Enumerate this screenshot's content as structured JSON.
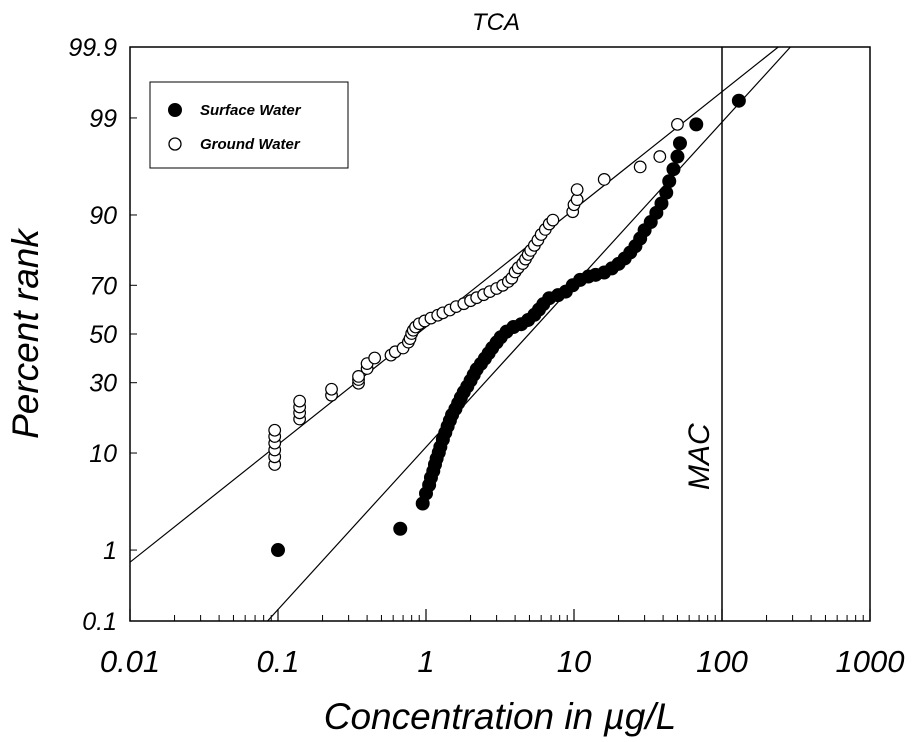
{
  "chart_data": {
    "type": "scatter",
    "title": "TCA",
    "xlabel": "Concentration in µg/L",
    "ylabel": "Percent rank",
    "x_scale": "log",
    "y_scale": "probability",
    "xlim": [
      0.01,
      1000
    ],
    "ylim": [
      0.1,
      99.9
    ],
    "x_ticks": [
      "0.01",
      "0.1",
      "1",
      "10",
      "100",
      "1000"
    ],
    "y_ticks": [
      "0.1",
      "1",
      "10",
      "30",
      "50",
      "70",
      "90",
      "99",
      "99.9"
    ],
    "legend": {
      "position": "top-left"
    },
    "grid": false,
    "reference_line": {
      "label": "MAC",
      "x": 100
    },
    "series": [
      {
        "name": "Surface Water",
        "marker": "filled-circle",
        "points": [
          [
            0.1,
            1.0
          ],
          [
            0.67,
            1.8
          ],
          [
            0.95,
            3.4
          ],
          [
            1.0,
            4.3
          ],
          [
            1.05,
            5.2
          ],
          [
            1.08,
            6.1
          ],
          [
            1.12,
            7.0
          ],
          [
            1.15,
            8.0
          ],
          [
            1.18,
            9.0
          ],
          [
            1.22,
            10.1
          ],
          [
            1.25,
            11.2
          ],
          [
            1.3,
            12.8
          ],
          [
            1.35,
            14.4
          ],
          [
            1.4,
            16.0
          ],
          [
            1.45,
            17.6
          ],
          [
            1.5,
            19.2
          ],
          [
            1.58,
            21.0
          ],
          [
            1.65,
            22.8
          ],
          [
            1.72,
            24.7
          ],
          [
            1.8,
            26.6
          ],
          [
            1.9,
            28.6
          ],
          [
            2.0,
            30.8
          ],
          [
            2.1,
            33.0
          ],
          [
            2.2,
            35.2
          ],
          [
            2.35,
            37.4
          ],
          [
            2.5,
            39.6
          ],
          [
            2.65,
            41.8
          ],
          [
            2.8,
            44.0
          ],
          [
            3.0,
            46.4
          ],
          [
            3.2,
            48.6
          ],
          [
            3.5,
            51.0
          ],
          [
            3.9,
            53.0
          ],
          [
            4.4,
            54.2
          ],
          [
            4.9,
            56.0
          ],
          [
            5.4,
            58.2
          ],
          [
            5.8,
            60.4
          ],
          [
            6.2,
            62.6
          ],
          [
            6.8,
            65.0
          ],
          [
            7.8,
            66.2
          ],
          [
            8.8,
            67.6
          ],
          [
            9.8,
            70.0
          ],
          [
            11.0,
            72.0
          ],
          [
            12.5,
            73.2
          ],
          [
            14.0,
            73.8
          ],
          [
            16.0,
            74.6
          ],
          [
            18.0,
            76.0
          ],
          [
            20.0,
            77.5
          ],
          [
            22.0,
            79.2
          ],
          [
            24.0,
            81.0
          ],
          [
            26.0,
            82.8
          ],
          [
            28.0,
            84.8
          ],
          [
            30.0,
            86.8
          ],
          [
            33.0,
            88.6
          ],
          [
            36.0,
            90.4
          ],
          [
            39.0,
            92.0
          ],
          [
            42.0,
            93.6
          ],
          [
            44.0,
            95.0
          ],
          [
            47.0,
            96.2
          ],
          [
            50.0,
            97.2
          ],
          [
            52.0,
            98.0
          ],
          [
            67.0,
            98.8
          ],
          [
            130.0,
            99.4
          ]
        ]
      },
      {
        "name": "Ground Water",
        "marker": "open-circle",
        "points": [
          [
            0.095,
            8.0
          ],
          [
            0.095,
            9.3
          ],
          [
            0.095,
            10.6
          ],
          [
            0.095,
            12.0
          ],
          [
            0.095,
            13.5
          ],
          [
            0.095,
            15.0
          ],
          [
            0.14,
            18.0
          ],
          [
            0.14,
            19.8
          ],
          [
            0.14,
            21.6
          ],
          [
            0.14,
            23.5
          ],
          [
            0.23,
            25.5
          ],
          [
            0.23,
            27.6
          ],
          [
            0.35,
            29.8
          ],
          [
            0.35,
            31.2
          ],
          [
            0.35,
            32.4
          ],
          [
            0.4,
            35.5
          ],
          [
            0.4,
            37.5
          ],
          [
            0.45,
            39.8
          ],
          [
            0.58,
            41.0
          ],
          [
            0.62,
            42.4
          ],
          [
            0.7,
            44.0
          ],
          [
            0.76,
            46.5
          ],
          [
            0.78,
            48.0
          ],
          [
            0.8,
            50.2
          ],
          [
            0.82,
            51.6
          ],
          [
            0.85,
            53.0
          ],
          [
            0.9,
            54.4
          ],
          [
            0.98,
            55.6
          ],
          [
            1.08,
            56.8
          ],
          [
            1.2,
            58.0
          ],
          [
            1.3,
            59.0
          ],
          [
            1.45,
            60.2
          ],
          [
            1.6,
            61.6
          ],
          [
            1.8,
            62.8
          ],
          [
            2.0,
            64.0
          ],
          [
            2.2,
            65.2
          ],
          [
            2.45,
            66.4
          ],
          [
            2.7,
            67.6
          ],
          [
            3.0,
            68.8
          ],
          [
            3.3,
            70.0
          ],
          [
            3.6,
            71.4
          ],
          [
            3.8,
            72.6
          ],
          [
            4.0,
            74.8
          ],
          [
            4.2,
            76.2
          ],
          [
            4.5,
            77.6
          ],
          [
            4.7,
            79.0
          ],
          [
            4.9,
            80.4
          ],
          [
            5.1,
            81.6
          ],
          [
            5.4,
            83.0
          ],
          [
            5.7,
            84.4
          ],
          [
            6.0,
            85.8
          ],
          [
            6.4,
            87.0
          ],
          [
            6.8,
            88.2
          ],
          [
            7.2,
            89.0
          ],
          [
            9.8,
            90.6
          ],
          [
            10.0,
            91.8
          ],
          [
            10.5,
            92.6
          ],
          [
            10.5,
            94.0
          ],
          [
            16.0,
            95.2
          ],
          [
            28.0,
            96.4
          ],
          [
            38.0,
            97.2
          ],
          [
            50.0,
            98.8
          ]
        ]
      }
    ],
    "fit_lines": [
      {
        "series": "Ground Water",
        "from": [
          0.01,
          0.7
        ],
        "to": [
          240.0,
          99.9
        ]
      },
      {
        "series": "Surface Water",
        "from": [
          0.085,
          0.1
        ],
        "to": [
          290.0,
          99.9
        ]
      }
    ]
  }
}
